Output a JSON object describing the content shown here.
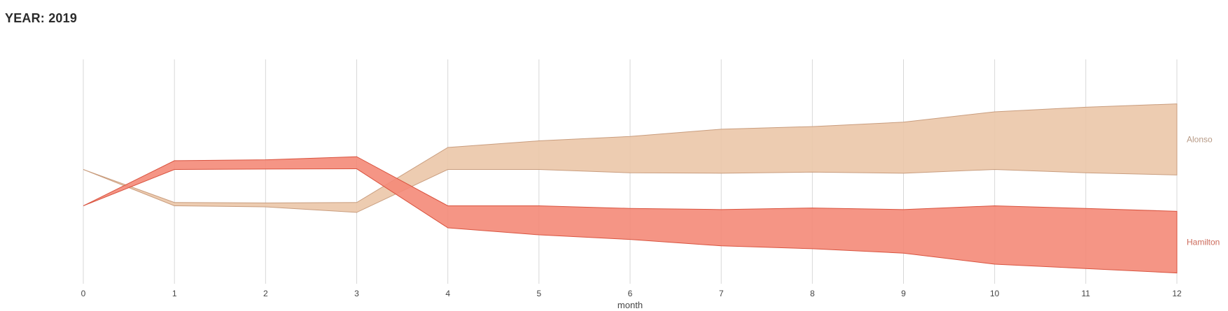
{
  "header": {
    "title": "YEAR: 2019"
  },
  "chart_data": {
    "type": "area",
    "x": [
      0,
      1,
      2,
      3,
      4,
      5,
      6,
      7,
      8,
      9,
      10,
      11,
      12
    ],
    "xlabel": "month",
    "ylabel": "",
    "grid": "vertical",
    "legend": "labels at right end of each band",
    "series": [
      {
        "name": "Alonso",
        "color": "#ebc7a9",
        "stroke": "#c99d7e",
        "label_color": "#b79a86",
        "lower": [
          50,
          33.5,
          33,
          30.5,
          50,
          50,
          48.5,
          48.3,
          48.8,
          48.3,
          50,
          48.5,
          47.5
        ],
        "upper": [
          50,
          35,
          34.8,
          35,
          60,
          63,
          65,
          68.3,
          69.5,
          71.5,
          76.2,
          78.3,
          79.8
        ]
      },
      {
        "name": "Hamilton",
        "color": "#f48a78",
        "stroke": "#d9533f",
        "label_color": "#cc6a5a",
        "lower": [
          33.5,
          50,
          50.2,
          50.3,
          23.5,
          20.3,
          18.2,
          15.3,
          14,
          12,
          7,
          5,
          3
        ],
        "upper": [
          33.5,
          54,
          54.4,
          55.8,
          33.5,
          33.5,
          32.3,
          31.8,
          32.5,
          31.8,
          33.5,
          32.3,
          31
        ]
      }
    ],
    "ylim": [
      0,
      100
    ]
  }
}
